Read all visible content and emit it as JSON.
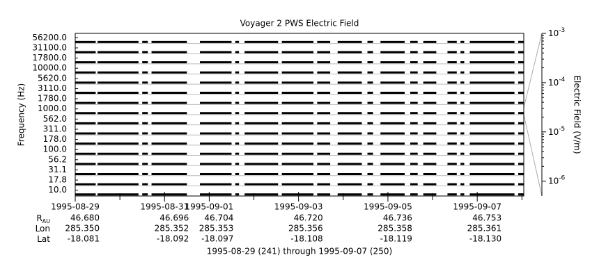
{
  "chart_data": {
    "type": "channel-coverage",
    "title": "Voyager 2 PWS Electric Field",
    "y_label": "Frequency (Hz)",
    "y2_label": "Electric Field (V/m)",
    "channels": [
      {
        "value": 56200,
        "label": "56200.0"
      },
      {
        "value": 31100,
        "label": "31100.0"
      },
      {
        "value": 17800,
        "label": "17800.0"
      },
      {
        "value": 10000,
        "label": "10000.0"
      },
      {
        "value": 5620,
        "label": "5620.0"
      },
      {
        "value": 3110,
        "label": "3110.0"
      },
      {
        "value": 1780,
        "label": "1780.0"
      },
      {
        "value": 1000,
        "label": "1000.0"
      },
      {
        "value": 562,
        "label": "562.0"
      },
      {
        "value": 311,
        "label": "311.0"
      },
      {
        "value": 178,
        "label": "178.0"
      },
      {
        "value": 100,
        "label": "100.0"
      },
      {
        "value": 56.2,
        "label": "56.2"
      },
      {
        "value": 31.1,
        "label": "31.1"
      },
      {
        "value": 17.8,
        "label": "17.8"
      },
      {
        "value": 10,
        "label": "10.0"
      }
    ],
    "xlim": [
      "1995-08-29T00:00",
      "1995-09-08T01:00"
    ],
    "xticks": [
      "1995-08-29",
      "1995-08-31",
      "1995-09-01",
      "1995-09-03",
      "1995-09-05",
      "1995-09-07"
    ],
    "xminorticks": [
      "1995-08-30",
      "1995-09-02",
      "1995-09-04",
      "1995-09-06",
      "1995-09-08"
    ],
    "coverage": [
      [
        "1995-08-29T00:00",
        "1995-08-29T11:00"
      ],
      [
        "1995-08-29T12:00",
        "1995-08-30T10:00"
      ],
      [
        "1995-08-30T12:00",
        "1995-08-30T15:00"
      ],
      [
        "1995-08-30T17:00",
        "1995-08-31T12:00"
      ],
      [
        "1995-08-31T19:00",
        "1995-09-01T12:00"
      ],
      [
        "1995-09-01T14:00",
        "1995-09-01T16:00"
      ],
      [
        "1995-09-01T19:00",
        "1995-09-02T13:00"
      ],
      [
        "1995-09-02T15:00",
        "1995-09-03T08:00"
      ],
      [
        "1995-09-03T10:00",
        "1995-09-03T17:00"
      ],
      [
        "1995-09-03T21:00",
        "1995-09-04T10:00"
      ],
      [
        "1995-09-04T13:00",
        "1995-09-04T16:00"
      ],
      [
        "1995-09-04T20:00",
        "1995-09-05T09:00"
      ],
      [
        "1995-09-05T12:00",
        "1995-09-05T16:00"
      ],
      [
        "1995-09-05T19:00",
        "1995-09-06T02:00"
      ],
      [
        "1995-09-06T08:00",
        "1995-09-06T13:00"
      ],
      [
        "1995-09-06T15:00",
        "1995-09-06T17:00"
      ],
      [
        "1995-09-06T20:00",
        "1995-09-07T20:00"
      ],
      [
        "1995-09-07T22:00",
        "1995-09-08T01:00"
      ]
    ],
    "color": "#000000",
    "y2_log": true,
    "y2lim": [
      5e-07,
      0.001
    ],
    "y2ticks": [
      {
        "value": 0.001,
        "label": "10",
        "sup": "-3"
      },
      {
        "value": 0.0001,
        "label": "10",
        "sup": "-4"
      },
      {
        "value": 1e-05,
        "label": "10",
        "sup": "-5"
      },
      {
        "value": 1e-06,
        "label": "10",
        "sup": "-6"
      }
    ],
    "ephemeris": [
      {
        "label": "R",
        "sub": "AU",
        "values": [
          "46.680",
          "46.696",
          "46.704",
          "46.720",
          "46.736",
          "46.753"
        ]
      },
      {
        "label": "Lon",
        "values": [
          "285.350",
          "285.352",
          "285.353",
          "285.356",
          "285.358",
          "285.361"
        ]
      },
      {
        "label": "Lat",
        "values": [
          "-18.081",
          "-18.092",
          "-18.097",
          "-18.108",
          "-18.119",
          "-18.130"
        ]
      }
    ],
    "footer": "1995-08-29 (241) through 1995-09-07 (250)"
  }
}
